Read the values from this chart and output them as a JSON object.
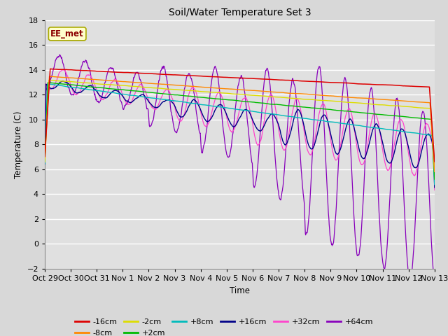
{
  "title": "Soil/Water Temperature Set 3",
  "xlabel": "Time",
  "ylabel": "Temperature (C)",
  "ylim": [
    -2,
    18
  ],
  "yticks": [
    -2,
    0,
    2,
    4,
    6,
    8,
    10,
    12,
    14,
    16,
    18
  ],
  "fig_bg": "#d8d8d8",
  "plot_bg": "#e0e0e0",
  "annotation_text": "EE_met",
  "annotation_color": "#8b0000",
  "annotation_bg": "#ffffcc",
  "annotation_edge": "#aaaa00",
  "series_colors": {
    "-16cm": "#dd0000",
    "-8cm": "#ff8800",
    "-2cm": "#dddd00",
    "+2cm": "#00bb00",
    "+8cm": "#00bbbb",
    "+16cm": "#000088",
    "+32cm": "#ff44cc",
    "+64cm": "#8800bb"
  },
  "x_tick_labels": [
    "Oct 29",
    "Oct 30",
    "Oct 31",
    "Nov 1",
    "Nov 2",
    "Nov 3",
    "Nov 4",
    "Nov 5",
    "Nov 6",
    "Nov 7",
    "Nov 8",
    "Nov 9",
    "Nov 10",
    "Nov 11",
    "Nov 12",
    "Nov 13"
  ],
  "n_days": 15,
  "n_points": 1440
}
